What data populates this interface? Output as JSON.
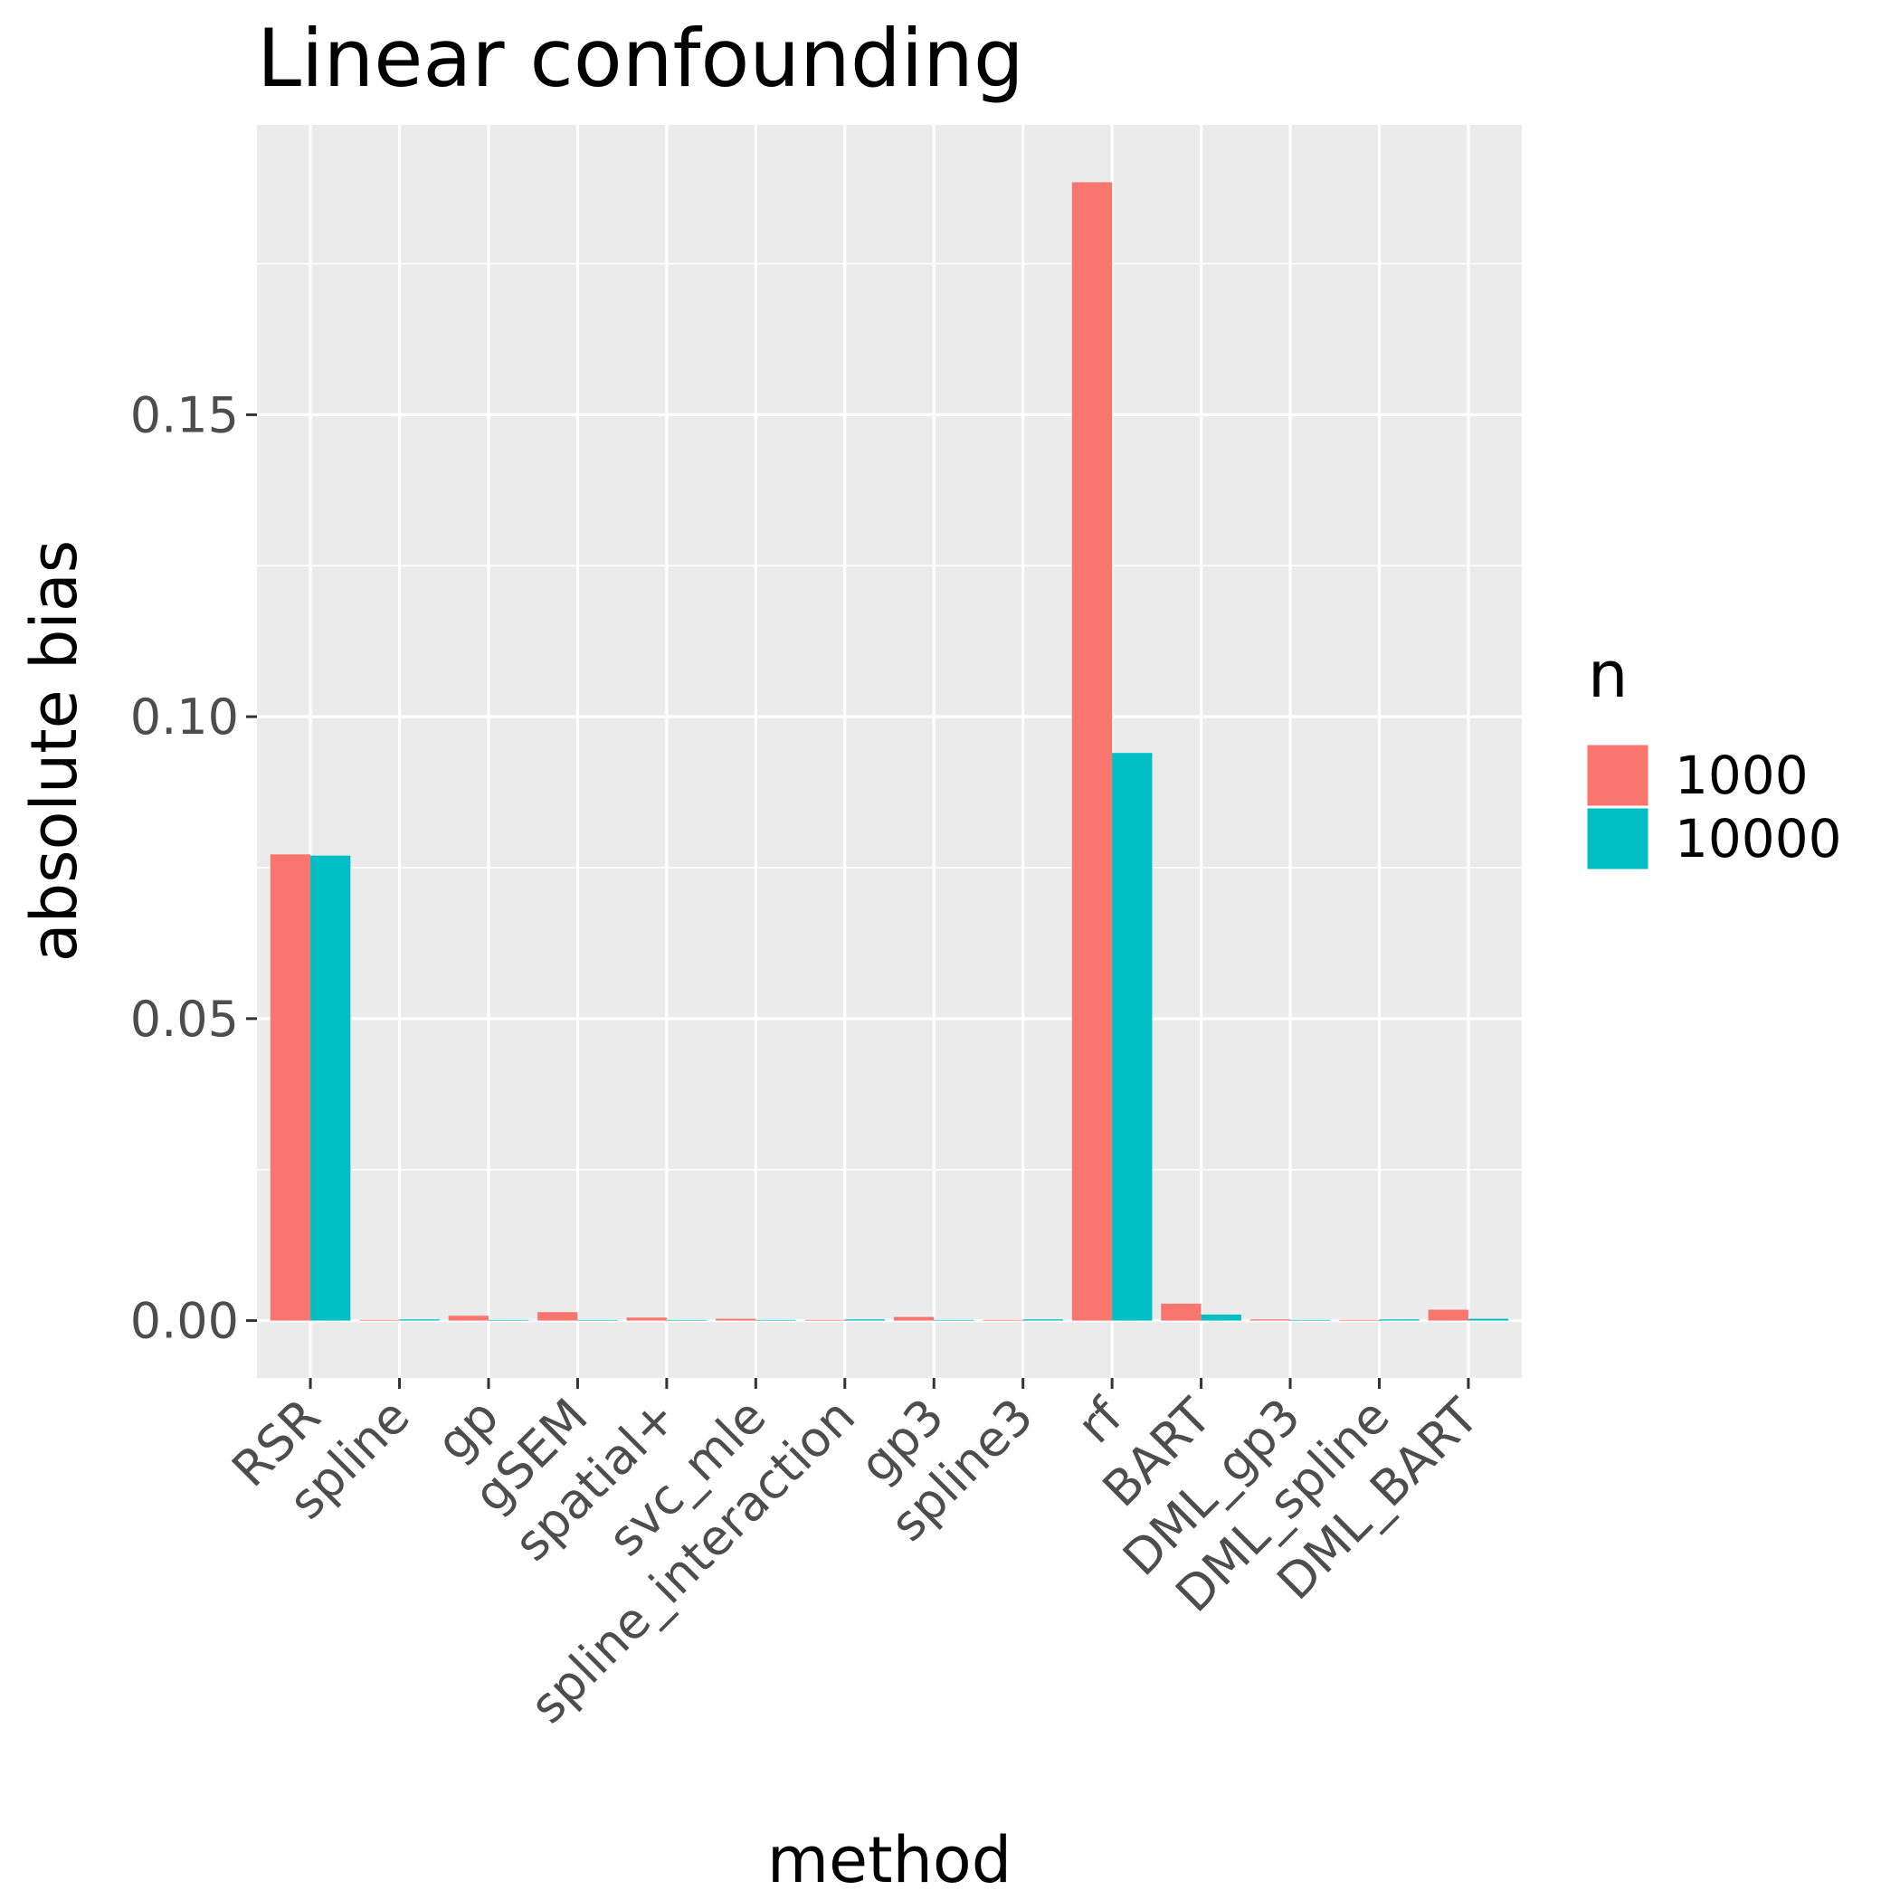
{
  "chart_data": {
    "type": "bar",
    "title": "Linear confounding",
    "xlabel": "method",
    "ylabel": "absolute bias",
    "categories": [
      "RSR",
      "spline",
      "gp",
      "gSEM",
      "spatial+",
      "svc_mle",
      "spline_interaction",
      "gp3",
      "spline3",
      "rf",
      "BART",
      "DML_gp3",
      "DML_spline",
      "DML_BART"
    ],
    "series": [
      {
        "name": "1000",
        "color": "#F8766D",
        "values": [
          0.0772,
          0.0001,
          0.0008,
          0.0014,
          0.0005,
          0.0003,
          0.0001,
          0.0006,
          0.0,
          0.1885,
          0.0028,
          0.0002,
          0.0001,
          0.0018
        ]
      },
      {
        "name": "10000",
        "color": "#00BFC4",
        "values": [
          0.077,
          0.0002,
          0.0001,
          0.0,
          0.0001,
          0.0,
          0.0002,
          0.0,
          0.0002,
          0.094,
          0.001,
          0.0,
          0.0002,
          0.0003
        ]
      }
    ],
    "ylim": [
      -0.0095,
      0.198
    ],
    "yticks": [
      0.0,
      0.05,
      0.1,
      0.15
    ],
    "ytick_labels": [
      "0.00",
      "0.05",
      "0.10",
      "0.15"
    ],
    "legend": {
      "title": "n",
      "position": "right"
    },
    "grid": true,
    "panel_background": "#EBEBEB"
  }
}
